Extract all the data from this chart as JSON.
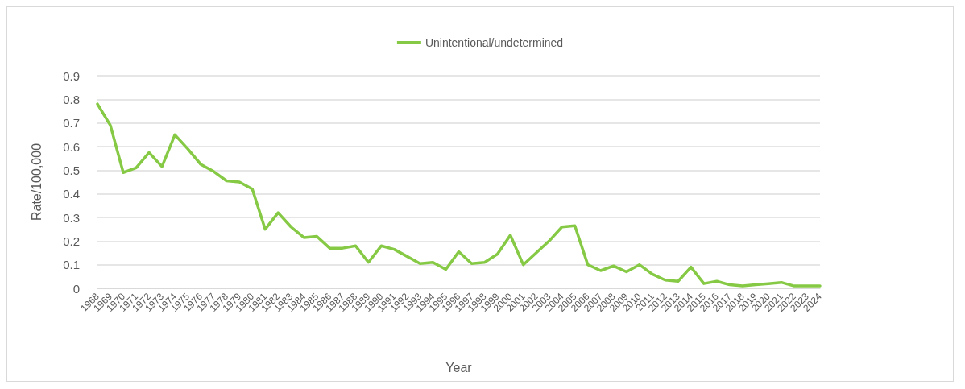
{
  "chart_data": {
    "type": "line",
    "xlabel": "Year",
    "ylabel": "Rate/100,000",
    "categories": [
      "1968",
      "1969",
      "1970",
      "1971",
      "1972",
      "1973",
      "1974",
      "1975",
      "1976",
      "1977",
      "1978",
      "1979",
      "1980",
      "1981",
      "1982",
      "1983",
      "1984",
      "1985",
      "1986",
      "1987",
      "1988",
      "1989",
      "1990",
      "1991",
      "1992",
      "1993",
      "1994",
      "1995",
      "1996",
      "1997",
      "1998",
      "1999",
      "2000",
      "2001",
      "2002",
      "2003",
      "2004",
      "2005",
      "2006",
      "2007",
      "2008",
      "2009",
      "2010",
      "2011",
      "2012",
      "2013",
      "2014",
      "2015",
      "2016",
      "2017",
      "2018",
      "2019",
      "2020",
      "2021",
      "2022",
      "2023",
      "2024"
    ],
    "series": [
      {
        "name": "Unintentional/undetermined",
        "color": "#86c944",
        "values": [
          0.78,
          0.69,
          0.49,
          0.51,
          0.575,
          0.515,
          0.65,
          0.59,
          0.525,
          0.495,
          0.455,
          0.45,
          0.42,
          0.25,
          0.32,
          0.26,
          0.215,
          0.22,
          0.17,
          0.17,
          0.18,
          0.11,
          0.18,
          0.165,
          0.135,
          0.105,
          0.11,
          0.08,
          0.155,
          0.105,
          0.11,
          0.145,
          0.225,
          0.1,
          0.15,
          0.2,
          0.26,
          0.265,
          0.1,
          0.075,
          0.095,
          0.07,
          0.1,
          0.06,
          0.035,
          0.03,
          0.09,
          0.02,
          0.03,
          0.015,
          0.01,
          0.015,
          0.02,
          0.025,
          0.01,
          0.01,
          0.01
        ]
      }
    ],
    "ylim": [
      0,
      0.9
    ],
    "yticks": [
      0,
      0.1,
      0.2,
      0.3,
      0.4,
      0.5,
      0.6,
      0.7,
      0.8,
      0.9
    ],
    "grid": "y",
    "legend": "top",
    "marker": "none",
    "line_style": "solid"
  }
}
